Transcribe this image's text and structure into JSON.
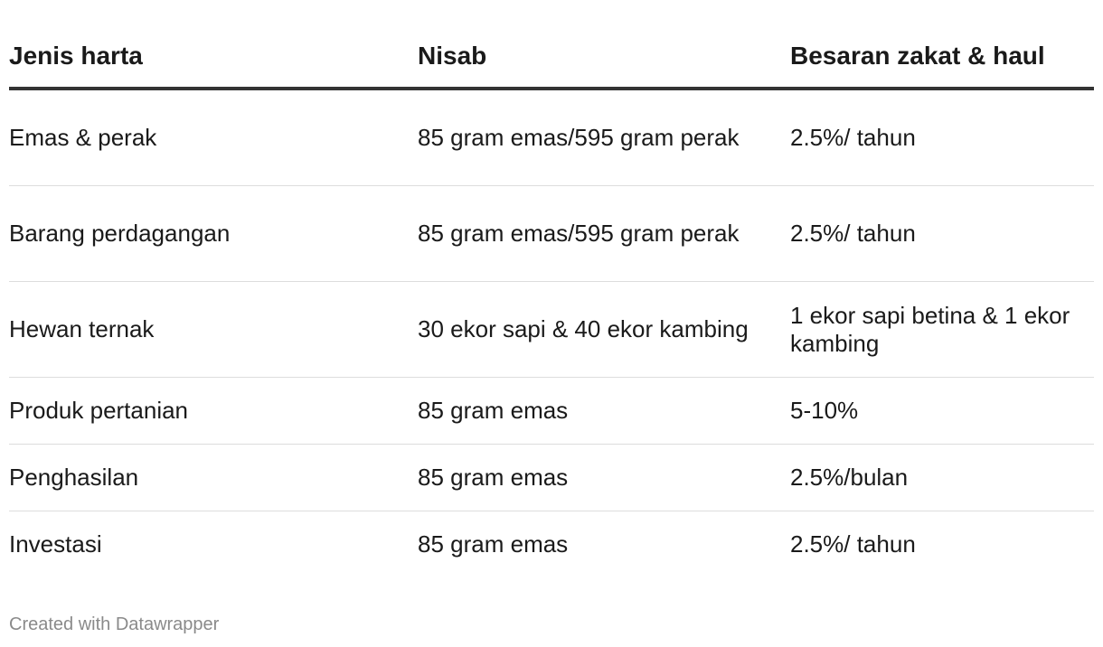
{
  "chart_data": {
    "type": "table",
    "columns": [
      "Jenis harta",
      "Nisab",
      "Besaran zakat & haul"
    ],
    "rows": [
      [
        "Emas & perak",
        "85 gram emas/595 gram perak",
        "2.5%/ tahun"
      ],
      [
        "Barang perdagangan",
        "85 gram emas/595 gram perak",
        "2.5%/ tahun"
      ],
      [
        "Hewan ternak",
        "30 ekor sapi & 40 ekor kambing",
        "1 ekor sapi betina & 1 ekor kambing"
      ],
      [
        "Produk pertanian",
        "85 gram emas",
        "5-10%"
      ],
      [
        "Penghasilan",
        "85 gram emas",
        "2.5%/bulan"
      ],
      [
        "Investasi",
        "85 gram emas",
        "2.5%/ tahun"
      ]
    ]
  },
  "footer": {
    "credit": "Created with Datawrapper"
  }
}
